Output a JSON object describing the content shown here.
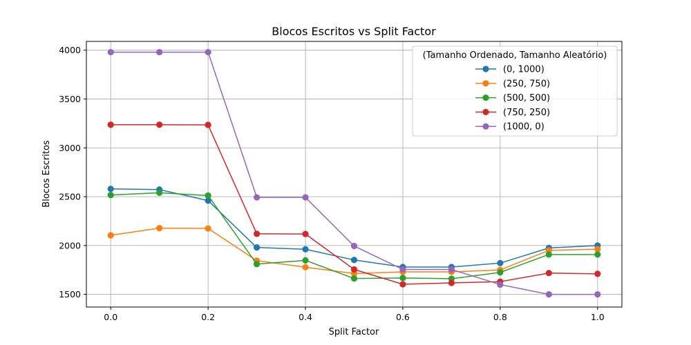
{
  "chart_data": {
    "type": "line",
    "title": "Blocos Escritos vs Split Factor",
    "xlabel": "Split Factor",
    "ylabel": "Blocos Escritos",
    "xlim": [
      -0.05,
      1.05
    ],
    "ylim": [
      1370,
      4090
    ],
    "xticks": [
      0.0,
      0.2,
      0.4,
      0.6,
      0.8,
      1.0
    ],
    "xtick_labels": [
      "0.0",
      "0.2",
      "0.4",
      "0.6",
      "0.8",
      "1.0"
    ],
    "yticks": [
      1500,
      2000,
      2500,
      3000,
      3500,
      4000
    ],
    "ytick_labels": [
      "1500",
      "2000",
      "2500",
      "3000",
      "3500",
      "4000"
    ],
    "grid": true,
    "legend": {
      "title": "(Tamanho Ordenado, Tamanho Aleatório)",
      "placement": "top-right"
    },
    "x": [
      0.0,
      0.1,
      0.2,
      0.3,
      0.4,
      0.5,
      0.6,
      0.7,
      0.8,
      0.9,
      1.0
    ],
    "series": [
      {
        "name": "(0, 1000)",
        "color": "#1f77b4",
        "values": [
          2580,
          2573,
          2460,
          1980,
          1962,
          1852,
          1780,
          1780,
          1820,
          1975,
          2000
        ]
      },
      {
        "name": "(250, 750)",
        "color": "#ff7f0e",
        "values": [
          2105,
          2178,
          2175,
          1845,
          1778,
          1713,
          1730,
          1730,
          1750,
          1950,
          1963
        ]
      },
      {
        "name": "(500, 500)",
        "color": "#2ca02c",
        "values": [
          2517,
          2540,
          2512,
          1810,
          1848,
          1662,
          1668,
          1660,
          1725,
          1908,
          1908
        ]
      },
      {
        "name": "(750, 250)",
        "color": "#d62728",
        "values": [
          3237,
          3237,
          3235,
          2120,
          2118,
          1755,
          1603,
          1617,
          1630,
          1718,
          1710
        ]
      },
      {
        "name": "(1000, 0)",
        "color": "#9467bd",
        "values": [
          3980,
          3980,
          3980,
          2493,
          2493,
          1995,
          1755,
          1755,
          1600,
          1500,
          1500
        ]
      }
    ]
  }
}
